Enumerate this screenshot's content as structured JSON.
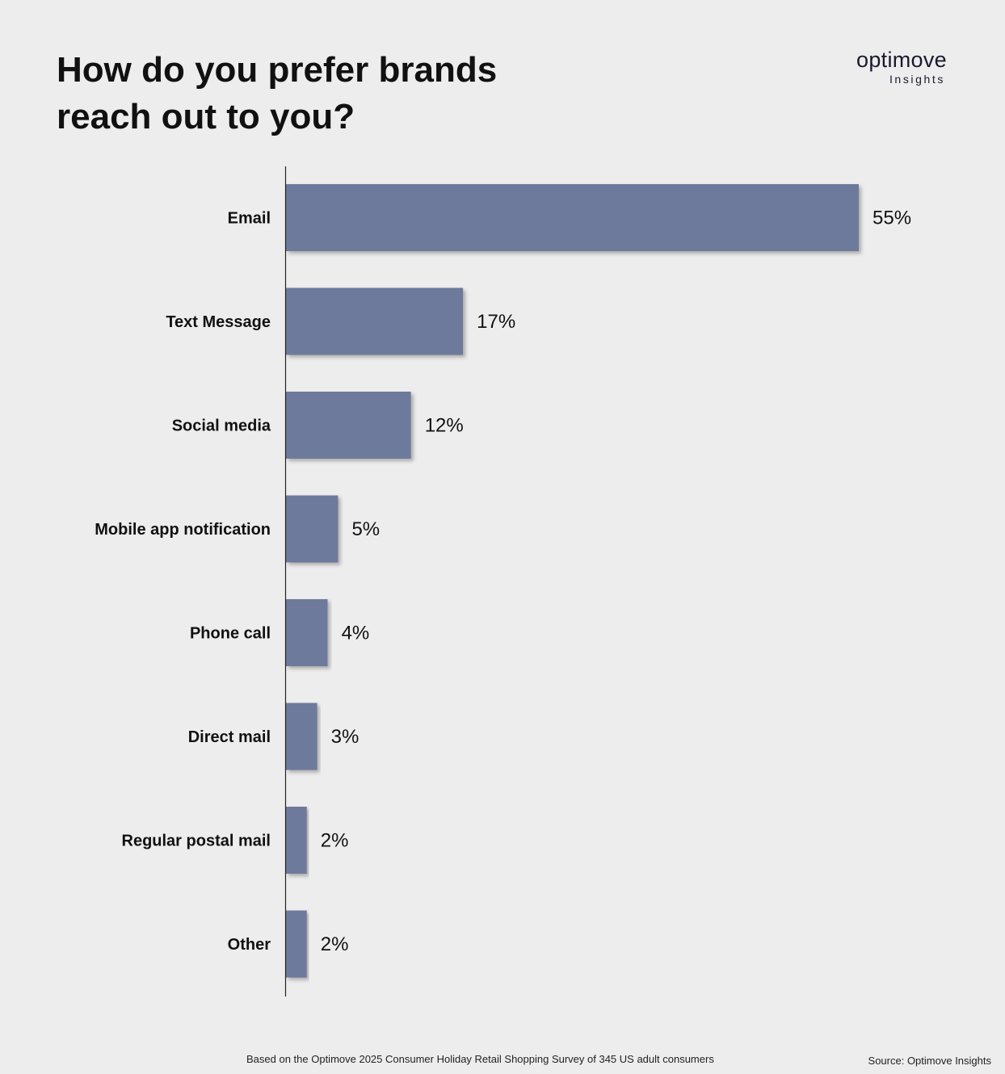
{
  "header": {
    "title_line1": "How do you prefer brands",
    "title_line2": "reach out to you?"
  },
  "logo": {
    "word": "optimove",
    "sub": "Insights"
  },
  "chart_data": {
    "type": "bar",
    "orientation": "horizontal",
    "categories": [
      "Email",
      "Text Message",
      "Social media",
      "Mobile app notification",
      "Phone call",
      "Direct mail",
      "Regular postal mail",
      "Other"
    ],
    "values": [
      55,
      17,
      12,
      5,
      4,
      3,
      2,
      2
    ],
    "value_labels": [
      "55%",
      "17%",
      "12%",
      "5%",
      "4%",
      "3%",
      "2%",
      "2%"
    ],
    "unit": "%",
    "xlim": [
      0,
      55
    ],
    "bar_color": "#6e7a9b",
    "grid": false,
    "legend": "none"
  },
  "footer": {
    "note": "Based on the Optimove 2025 Consumer Holiday Retail Shopping Survey of 345 US adult consumers",
    "source": "Source: Optimove Insights"
  },
  "colors": {
    "background": "#ededed",
    "text": "#111111",
    "bar": "#6e7a9b"
  }
}
